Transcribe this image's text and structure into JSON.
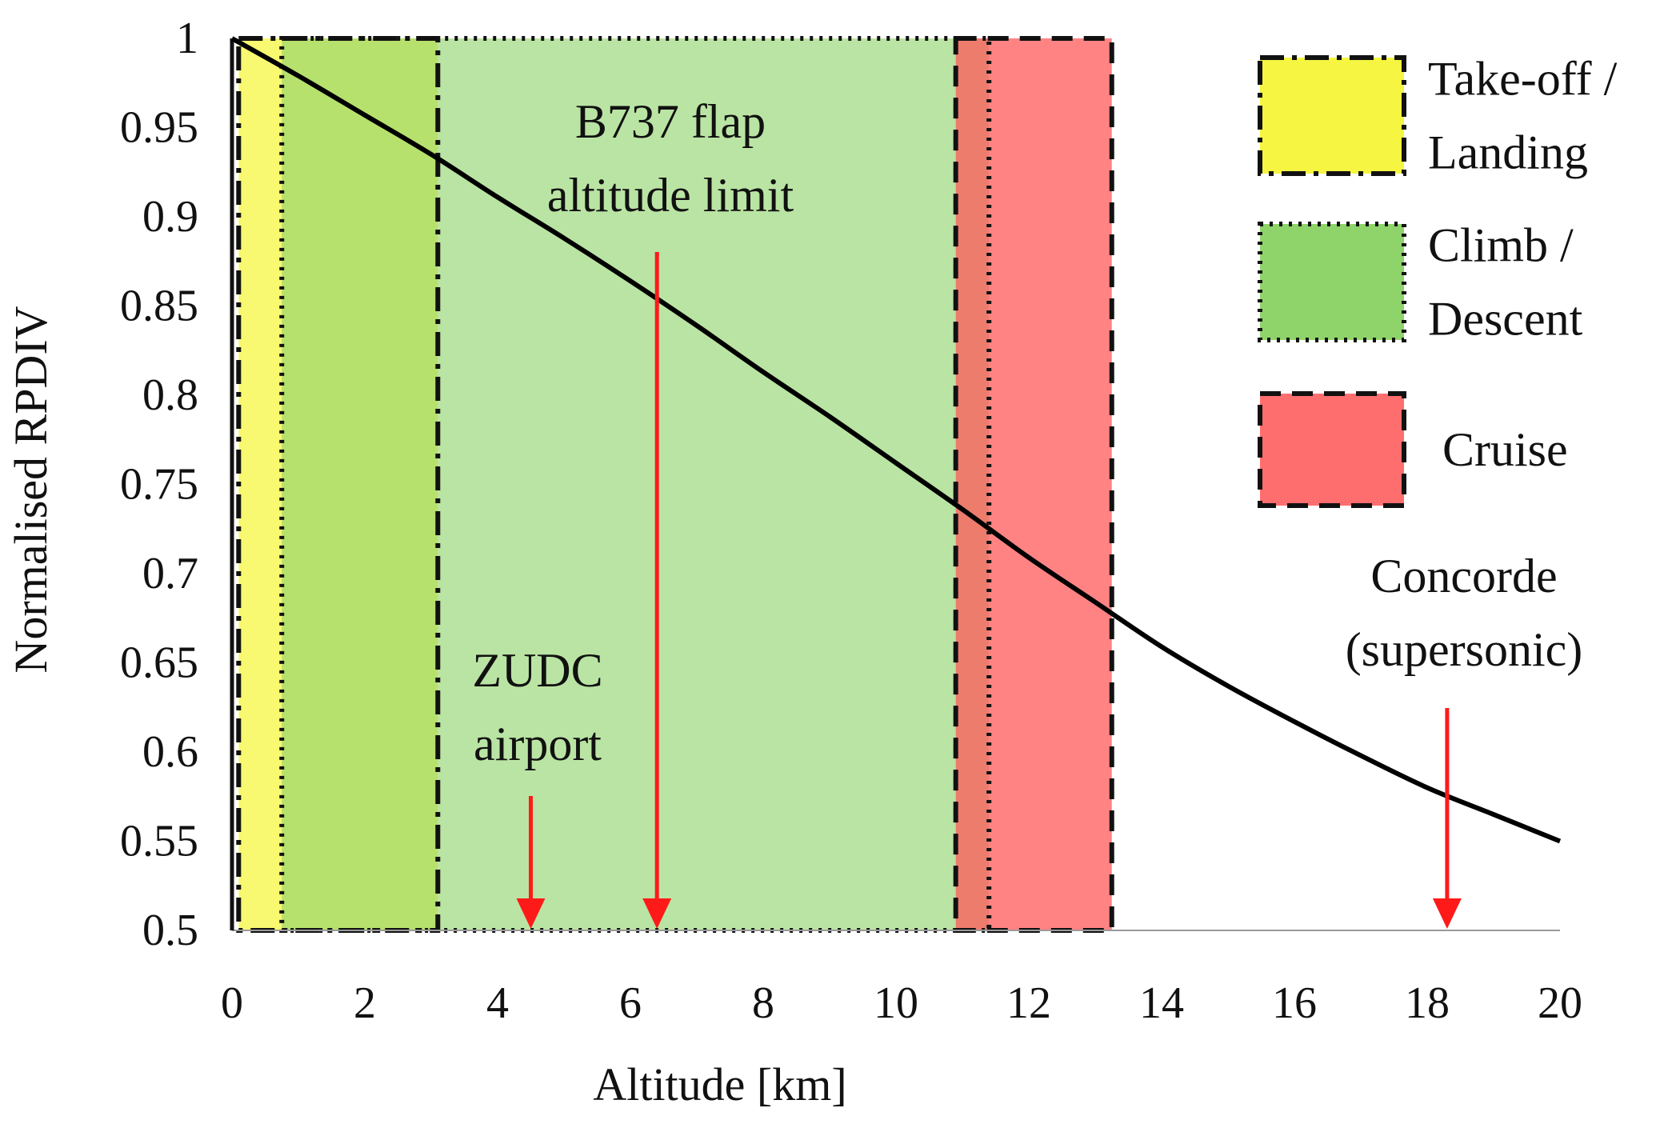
{
  "chart_data": {
    "type": "line",
    "xlabel": "Altitude [km]",
    "ylabel": "Normalised RPDIV",
    "xlim": [
      0,
      20
    ],
    "ylim": [
      0.5,
      1
    ],
    "xticks": [
      "0",
      "2",
      "4",
      "6",
      "8",
      "10",
      "12",
      "14",
      "16",
      "18",
      "20"
    ],
    "yticks": [
      "0.5",
      "0.55",
      "0.6",
      "0.65",
      "0.7",
      "0.75",
      "0.8",
      "0.85",
      "0.9",
      "0.95",
      "1"
    ],
    "series": [
      {
        "x": [
          0,
          1,
          2,
          3,
          4,
          5,
          6,
          7,
          8,
          9,
          10,
          11,
          12,
          13,
          14,
          15,
          16,
          17,
          18,
          19,
          20
        ],
        "y": [
          1.0,
          0.979,
          0.957,
          0.935,
          0.911,
          0.888,
          0.864,
          0.839,
          0.813,
          0.788,
          0.762,
          0.736,
          0.709,
          0.684,
          0.659,
          0.637,
          0.617,
          0.598,
          0.58,
          0.565,
          0.55
        ]
      }
    ],
    "regions": [
      {
        "label": "Take-off / Landing",
        "x0": 0.1,
        "x1": 3.1,
        "color": "#f5f542",
        "opacity": 0.75,
        "dash": "dashdot"
      },
      {
        "label": "Climb / Descent",
        "x0": 0.75,
        "x1": 11.4,
        "color": "#8fd46a",
        "opacity": 0.62,
        "dash": "dotted"
      },
      {
        "label": "Cruise",
        "x0": 10.9,
        "x1": 13.25,
        "color": "#ff5a5a",
        "opacity": 0.75,
        "dash": "dashed"
      }
    ],
    "annotations": [
      {
        "lines": [
          "ZUDC",
          "airport"
        ],
        "x": 4.5
      },
      {
        "lines": [
          "B737 flap",
          "altitude limit"
        ],
        "x": 6.4
      },
      {
        "lines": [
          "Concorde",
          "(supersonic)"
        ],
        "x": 18.3
      }
    ],
    "legend": {
      "position": "top-right",
      "items": [
        {
          "lines": [
            "Take-off /",
            "Landing"
          ],
          "color": "#f5f542",
          "dash": "dashdot"
        },
        {
          "lines": [
            "Climb /",
            "Descent"
          ],
          "color": "#8fd46a",
          "dash": "dotted"
        },
        {
          "lines": [
            "Cruise"
          ],
          "color": "#ff6e6e",
          "dash": "dashed"
        }
      ]
    },
    "colors": {
      "arrow": "#ff1a1a",
      "line": "#000000"
    }
  }
}
